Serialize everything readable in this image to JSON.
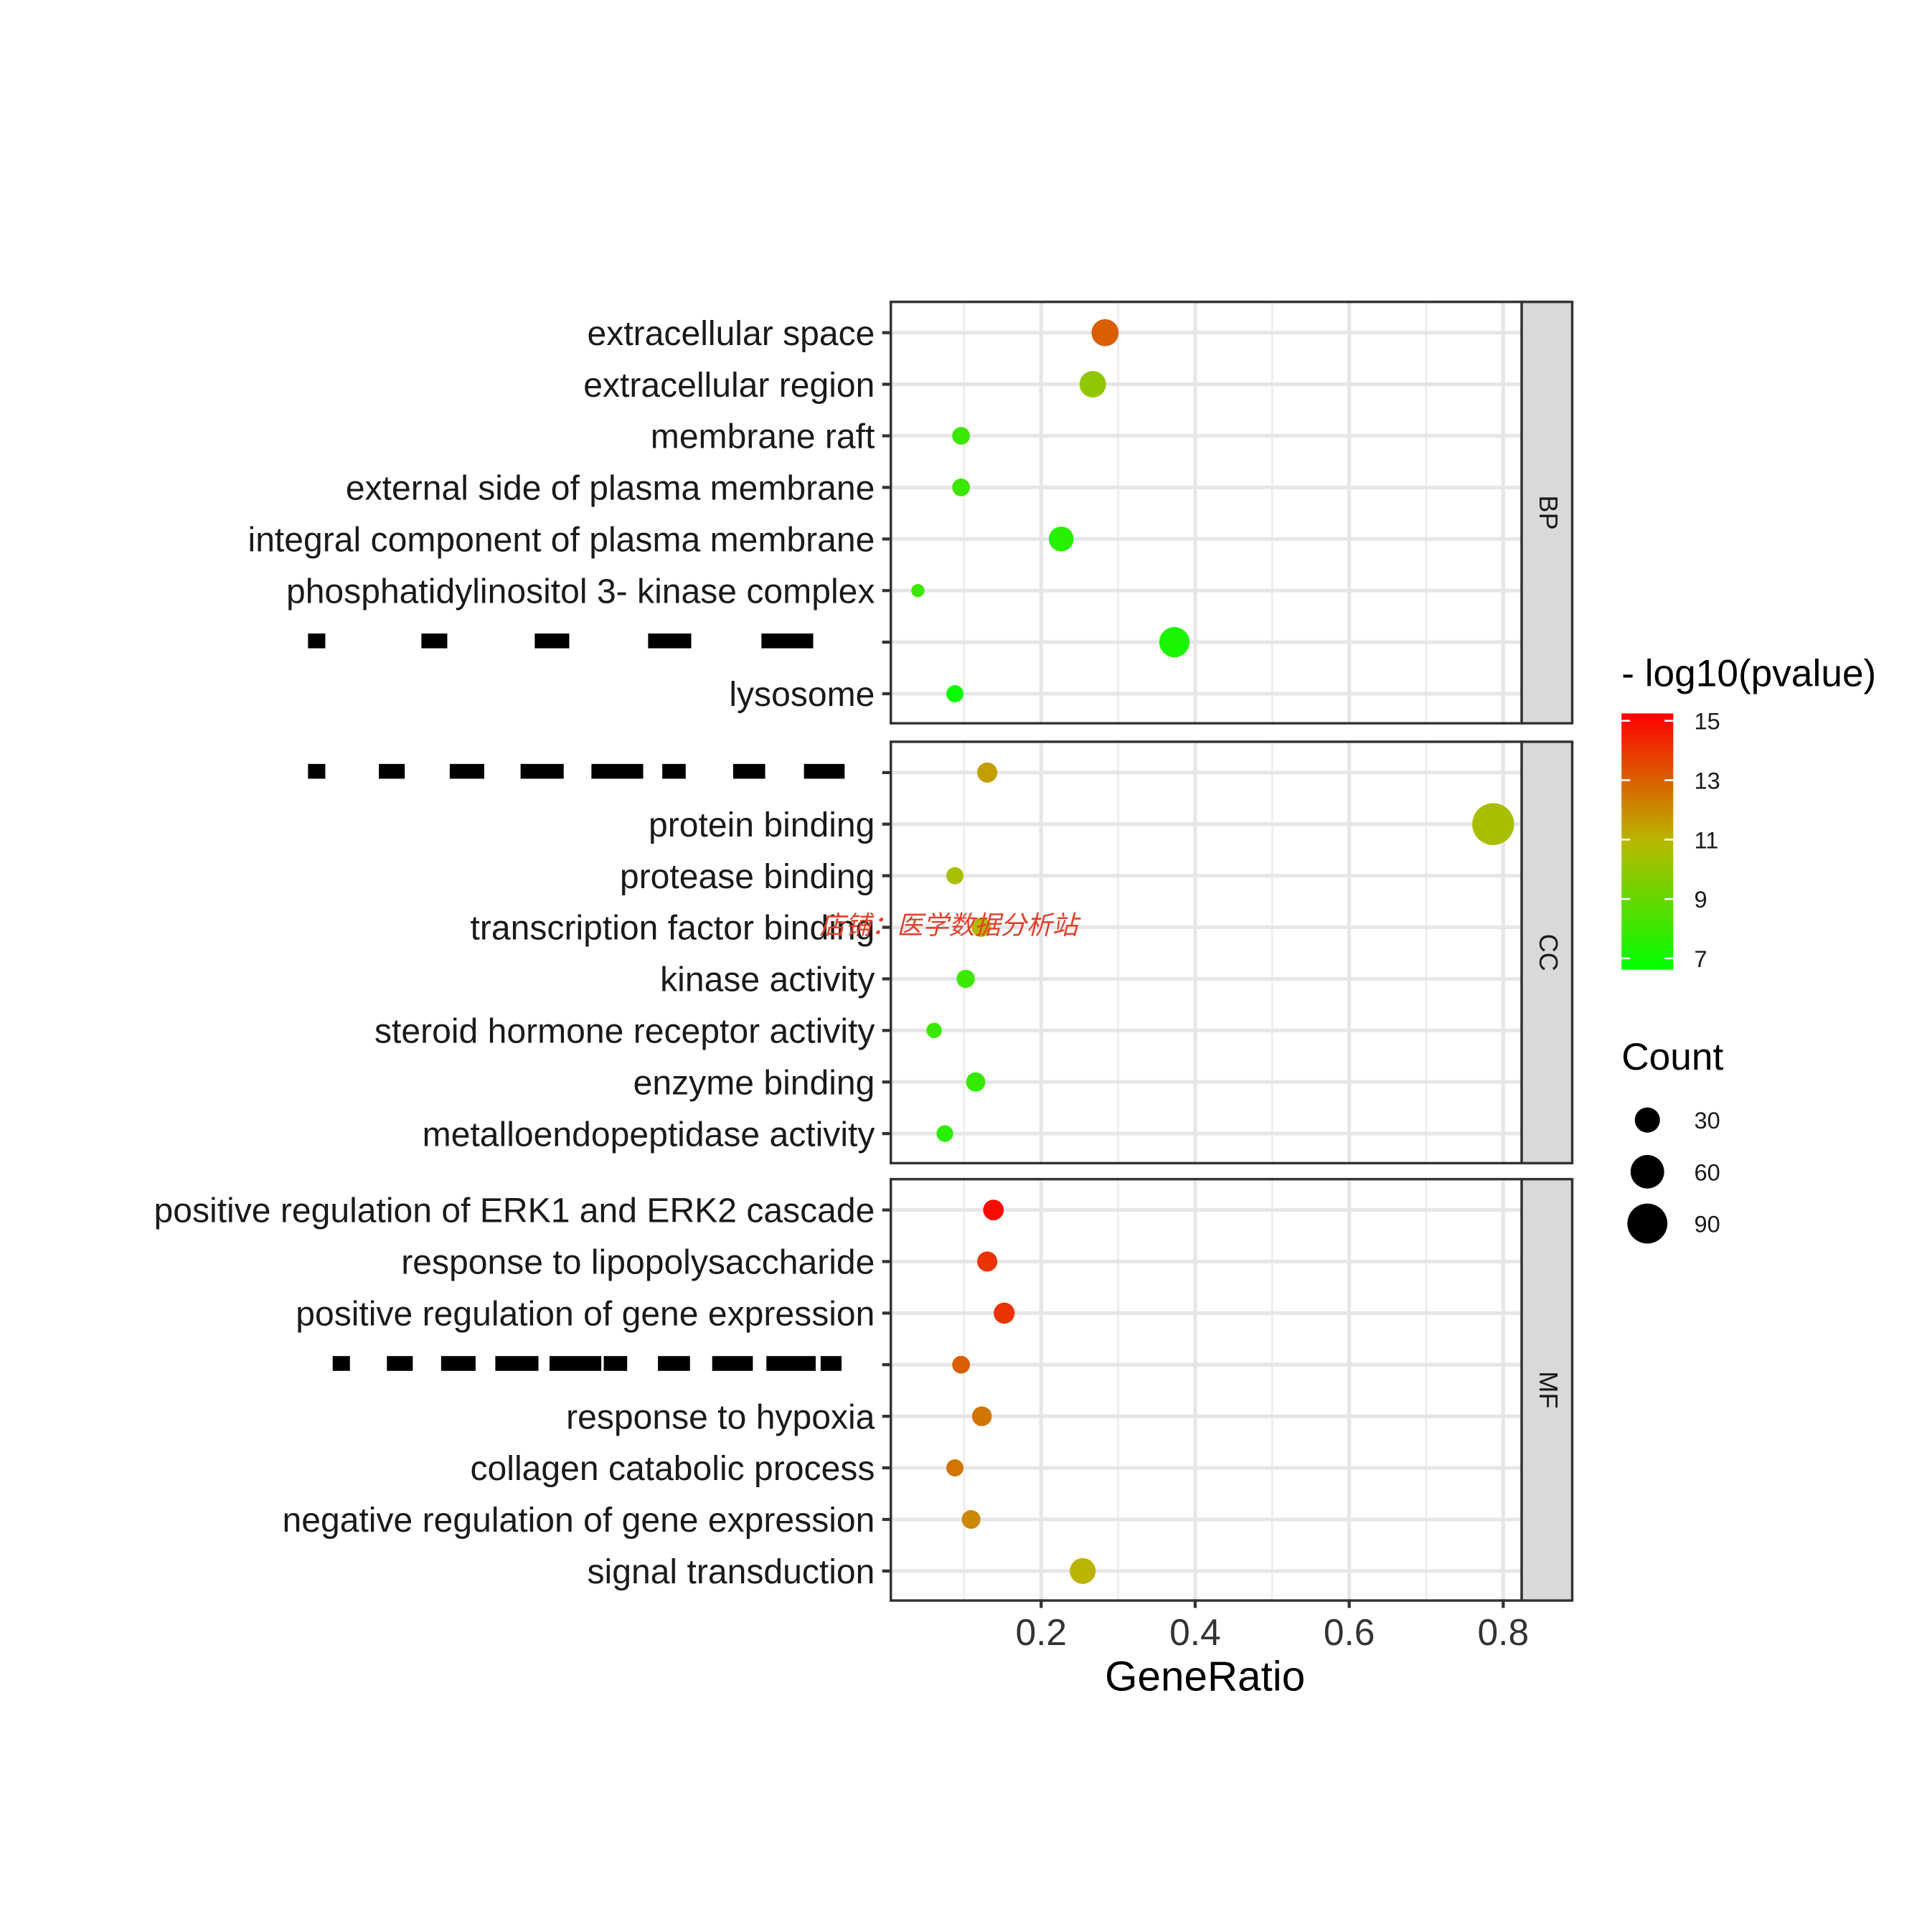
{
  "chart_data": {
    "type": "scatter",
    "xlabel": "GeneRatio",
    "xlim": [
      0.005,
      0.819
    ],
    "xticks": [
      0.2,
      0.4,
      0.6,
      0.8
    ],
    "xtick_labels": [
      "0.2",
      "0.4",
      "0.6",
      "0.8"
    ],
    "grid": true,
    "color_legend": {
      "title": "- log10(pvalue)",
      "ticks": [
        "15",
        "13",
        "11",
        "9",
        "7"
      ],
      "range": [
        6.6,
        15.2
      ],
      "low_color": "#00ff00",
      "high_color": "#ff0000"
    },
    "size_legend": {
      "title": "Count",
      "values": [
        "30",
        "60",
        "90"
      ]
    },
    "legend_placement": "right",
    "panels": [
      {
        "strip": "BP",
        "points": [
          {
            "term": "extracellular space",
            "gene_ratio": 0.283,
            "log10p": 13,
            "count": 36
          },
          {
            "term": "extracellular region",
            "gene_ratio": 0.267,
            "log10p": 10,
            "count": 34
          },
          {
            "term": "membrane raft",
            "gene_ratio": 0.096,
            "log10p": 8,
            "count": 12
          },
          {
            "term": "external side of plasma membrane",
            "gene_ratio": 0.096,
            "log10p": 8,
            "count": 12
          },
          {
            "term": "integral component of plasma membrane",
            "gene_ratio": 0.226,
            "log10p": 7.5,
            "count": 29
          },
          {
            "term": "phosphatidylinositol 3- kinase complex",
            "gene_ratio": 0.04,
            "log10p": 8,
            "count": 5
          },
          {
            "term": "",
            "redacted": true,
            "gene_ratio": 0.373,
            "log10p": 7.2,
            "count": 47
          },
          {
            "term": "lysosome",
            "gene_ratio": 0.088,
            "log10p": 6.8,
            "count": 11
          }
        ]
      },
      {
        "strip": "CC",
        "points": [
          {
            "term": "",
            "redacted": true,
            "gene_ratio": 0.13,
            "log10p": 11.5,
            "count": 17
          },
          {
            "term": "protein binding",
            "gene_ratio": 0.787,
            "log10p": 10.5,
            "count": 100
          },
          {
            "term": "protease binding",
            "gene_ratio": 0.088,
            "log10p": 10.5,
            "count": 11
          },
          {
            "term": "transcription factor binding",
            "gene_ratio": 0.122,
            "log10p": 11,
            "count": 15
          },
          {
            "term": "kinase activity",
            "gene_ratio": 0.102,
            "log10p": 8,
            "count": 13
          },
          {
            "term": "steroid hormone receptor activity",
            "gene_ratio": 0.061,
            "log10p": 8,
            "count": 8
          },
          {
            "term": "enzyme binding",
            "gene_ratio": 0.115,
            "log10p": 7.8,
            "count": 15
          },
          {
            "term": "metalloendopeptidase activity",
            "gene_ratio": 0.075,
            "log10p": 7.5,
            "count": 10
          }
        ]
      },
      {
        "strip": "MF",
        "points": [
          {
            "term": "positive regulation of ERK1 and ERK2 cascade",
            "gene_ratio": 0.138,
            "log10p": 15,
            "count": 18
          },
          {
            "term": "response to lipopolysaccharide",
            "gene_ratio": 0.13,
            "log10p": 14,
            "count": 17
          },
          {
            "term": "positive regulation of gene expression",
            "gene_ratio": 0.152,
            "log10p": 14,
            "count": 19
          },
          {
            "term": "",
            "redacted": true,
            "gene_ratio": 0.096,
            "log10p": 13,
            "count": 12
          },
          {
            "term": "response to hypoxia",
            "gene_ratio": 0.123,
            "log10p": 12.5,
            "count": 16
          },
          {
            "term": "collagen catabolic process",
            "gene_ratio": 0.088,
            "log10p": 12.5,
            "count": 11
          },
          {
            "term": "negative regulation of gene expression",
            "gene_ratio": 0.109,
            "log10p": 12,
            "count": 14
          },
          {
            "term": "signal transduction",
            "gene_ratio": 0.254,
            "log10p": 11,
            "count": 32
          }
        ]
      }
    ]
  },
  "watermark": "店铺：医学数据分析站"
}
